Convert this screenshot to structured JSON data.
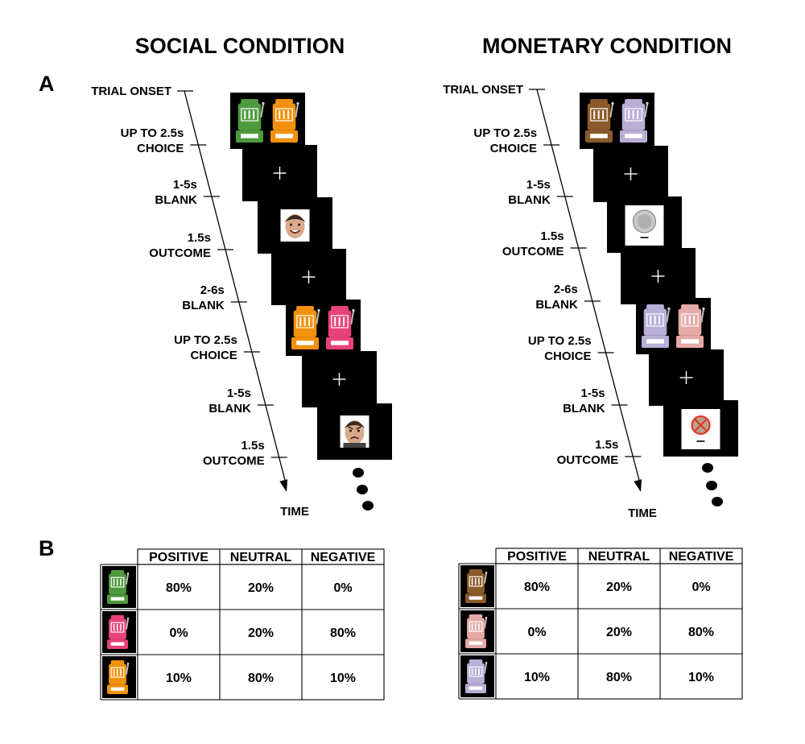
{
  "panel_a_letter": "A",
  "panel_b_letter": "B",
  "social": {
    "title": "SOCIAL CONDITION",
    "onset_label": "TRIAL ONSET",
    "time_label": "TIME",
    "events": [
      {
        "duration": "UP TO 2.5s",
        "name": "CHOICE"
      },
      {
        "duration": "1-5s",
        "name": "BLANK"
      },
      {
        "duration": "1.5s",
        "name": "OUTCOME"
      },
      {
        "duration": "2-6s",
        "name": "BLANK"
      },
      {
        "duration": "UP TO 2.5s",
        "name": "CHOICE"
      },
      {
        "duration": "1-5s",
        "name": "BLANK"
      },
      {
        "duration": "1.5s",
        "name": "OUTCOME"
      }
    ],
    "screens": [
      {
        "type": "choice",
        "left": "#4f9a3e",
        "right": "#f2920c"
      },
      {
        "type": "fixation"
      },
      {
        "type": "outcome",
        "stimulus": "smiling-face"
      },
      {
        "type": "fixation"
      },
      {
        "type": "choice",
        "left": "#f2920c",
        "right": "#e8427a"
      },
      {
        "type": "fixation"
      },
      {
        "type": "outcome",
        "stimulus": "angry-face"
      }
    ],
    "table": {
      "headers": [
        "POSITIVE",
        "NEUTRAL",
        "NEGATIVE"
      ],
      "rows": [
        {
          "machine_color": "#4f9a3e",
          "values": [
            "80%",
            "20%",
            "0%"
          ]
        },
        {
          "machine_color": "#e8427a",
          "values": [
            "0%",
            "20%",
            "80%"
          ]
        },
        {
          "machine_color": "#f2920c",
          "values": [
            "10%",
            "80%",
            "10%"
          ]
        }
      ]
    }
  },
  "monetary": {
    "title": "MONETARY CONDITION",
    "onset_label": "TRIAL ONSET",
    "time_label": "TIME",
    "events": [
      {
        "duration": "UP TO 2.5s",
        "name": "CHOICE"
      },
      {
        "duration": "1-5s",
        "name": "BLANK"
      },
      {
        "duration": "1.5s",
        "name": "OUTCOME"
      },
      {
        "duration": "2-6s",
        "name": "BLANK"
      },
      {
        "duration": "UP TO 2.5s",
        "name": "CHOICE"
      },
      {
        "duration": "1-5s",
        "name": "BLANK"
      },
      {
        "duration": "1.5s",
        "name": "OUTCOME"
      }
    ],
    "screens": [
      {
        "type": "choice",
        "left": "#8b5a2b",
        "right": "#b8aed6"
      },
      {
        "type": "fixation"
      },
      {
        "type": "outcome",
        "stimulus": "coin"
      },
      {
        "type": "fixation"
      },
      {
        "type": "choice",
        "left": "#b8aed6",
        "right": "#e6aaa6"
      },
      {
        "type": "fixation"
      },
      {
        "type": "outcome",
        "stimulus": "crossed-coin"
      }
    ],
    "table": {
      "headers": [
        "POSITIVE",
        "NEUTRAL",
        "NEGATIVE"
      ],
      "rows": [
        {
          "machine_color": "#8b5a2b",
          "values": [
            "80%",
            "20%",
            "0%"
          ]
        },
        {
          "machine_color": "#e6aaa6",
          "values": [
            "0%",
            "20%",
            "80%"
          ]
        },
        {
          "machine_color": "#b8aed6",
          "values": [
            "10%",
            "80%",
            "10%"
          ]
        }
      ]
    }
  }
}
